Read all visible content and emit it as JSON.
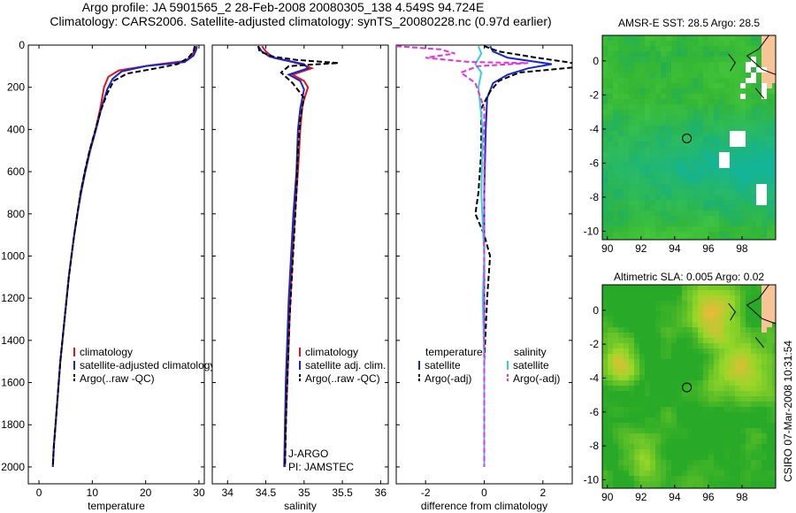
{
  "header": {
    "line1": "Argo profile: JA 5901565_2 28-Feb-2008 20080305_138 4.549S 94.724E",
    "line2": "Climatology: CARS2006. Satellite-adjusted climatology: synTS_20080228.nc (0.97d earlier)"
  },
  "footer": {
    "credit": "CSIRO 07-Mar-2008 10:31:54"
  },
  "colors": {
    "climatology": "#e0141e",
    "satellite": "#1428d2",
    "argo": "#000000",
    "sal_sat": "#32d2dc",
    "sal_argo": "#e632dc"
  },
  "chart_data": [
    {
      "type": "line",
      "name": "temperature-profile",
      "xlabel": "temperature",
      "ylabel": "",
      "xlim": [
        -2,
        31
      ],
      "ylim": [
        2080,
        0
      ],
      "xticks": [
        "0",
        "10",
        "20",
        "30"
      ],
      "xtick_values": [
        0,
        10,
        20,
        30
      ],
      "yticks": [
        "0",
        "200",
        "400",
        "600",
        "800",
        "1000",
        "1200",
        "1400",
        "1600",
        "1800",
        "2000"
      ],
      "ytick_values": [
        0,
        200,
        400,
        600,
        800,
        1000,
        1200,
        1400,
        1600,
        1800,
        2000
      ],
      "legend": [
        "climatology",
        "satellite-adjusted climatology",
        "Argo(..raw -QC)"
      ],
      "series": [
        {
          "name": "climatology",
          "style": "solid",
          "color": "#e0141e",
          "points": [
            [
              29.3,
              5
            ],
            [
              29.2,
              20
            ],
            [
              28.7,
              50
            ],
            [
              27.5,
              75
            ],
            [
              21,
              95
            ],
            [
              15,
              120
            ],
            [
              13,
              150
            ],
            [
              12.2,
              200
            ],
            [
              11.5,
              300
            ],
            [
              10.6,
              400
            ],
            [
              9.5,
              500
            ],
            [
              8.6,
              600
            ],
            [
              7.8,
              700
            ],
            [
              7.2,
              800
            ],
            [
              6.6,
              900
            ],
            [
              6.1,
              1000
            ],
            [
              5.6,
              1100
            ],
            [
              5.2,
              1200
            ],
            [
              4.8,
              1300
            ],
            [
              4.4,
              1400
            ],
            [
              4.0,
              1500
            ],
            [
              3.7,
              1600
            ],
            [
              3.4,
              1700
            ],
            [
              3.1,
              1800
            ],
            [
              2.8,
              1900
            ],
            [
              2.6,
              2000
            ]
          ]
        },
        {
          "name": "satellite-adjusted",
          "style": "solid",
          "color": "#1428d2",
          "points": [
            [
              29.6,
              5
            ],
            [
              29.5,
              20
            ],
            [
              29,
              50
            ],
            [
              27.3,
              80
            ],
            [
              20,
              100
            ],
            [
              15.5,
              125
            ],
            [
              13.8,
              160
            ],
            [
              12.8,
              210
            ],
            [
              11.7,
              300
            ],
            [
              10.7,
              400
            ],
            [
              9.6,
              500
            ],
            [
              8.7,
              600
            ],
            [
              7.9,
              700
            ],
            [
              7.2,
              800
            ],
            [
              6.6,
              900
            ],
            [
              6.1,
              1000
            ],
            [
              5.6,
              1100
            ],
            [
              5.2,
              1200
            ],
            [
              4.8,
              1300
            ],
            [
              4.4,
              1400
            ],
            [
              4.0,
              1500
            ],
            [
              3.7,
              1600
            ],
            [
              3.4,
              1700
            ],
            [
              3.1,
              1800
            ],
            [
              2.8,
              1900
            ],
            [
              2.6,
              2000
            ]
          ]
        },
        {
          "name": "Argo",
          "style": "dashed",
          "color": "#000000",
          "points": [
            [
              29.2,
              5
            ],
            [
              29,
              30
            ],
            [
              28,
              60
            ],
            [
              26,
              90
            ],
            [
              22,
              110
            ],
            [
              16.5,
              135
            ],
            [
              14,
              170
            ],
            [
              12.8,
              230
            ],
            [
              11.6,
              310
            ],
            [
              10.6,
              400
            ],
            [
              9.5,
              500
            ],
            [
              8.6,
              600
            ],
            [
              7.8,
              700
            ],
            [
              7.2,
              800
            ],
            [
              6.6,
              900
            ],
            [
              6.1,
              1000
            ],
            [
              5.6,
              1100
            ],
            [
              5.2,
              1200
            ],
            [
              4.8,
              1300
            ],
            [
              4.4,
              1400
            ],
            [
              4.0,
              1500
            ],
            [
              3.7,
              1600
            ],
            [
              3.4,
              1700
            ],
            [
              3.1,
              1800
            ],
            [
              2.8,
              1900
            ],
            [
              2.6,
              2000
            ]
          ]
        }
      ]
    },
    {
      "type": "line",
      "name": "salinity-profile",
      "xlabel": "salinity",
      "xlim": [
        33.8,
        36.1
      ],
      "ylim": [
        2080,
        0
      ],
      "xticks": [
        "34",
        "34.5",
        "35",
        "35.5",
        "36"
      ],
      "xtick_values": [
        34,
        34.5,
        35,
        35.5,
        36
      ],
      "legend": [
        "climatology",
        "satellite adj. clim.",
        "Argo(..raw -QC)"
      ],
      "annotation": [
        "J-ARGO",
        "PI: JAMSTEC"
      ],
      "series": [
        {
          "name": "climatology",
          "style": "solid",
          "color": "#e0141e",
          "points": [
            [
              34.45,
              5
            ],
            [
              34.5,
              30
            ],
            [
              34.6,
              60
            ],
            [
              34.85,
              80
            ],
            [
              35.0,
              95
            ],
            [
              35.1,
              110
            ],
            [
              34.85,
              140
            ],
            [
              35.0,
              170
            ],
            [
              35.05,
              200
            ],
            [
              34.98,
              280
            ],
            [
              34.95,
              400
            ],
            [
              34.92,
              600
            ],
            [
              34.88,
              800
            ],
            [
              34.85,
              1000
            ],
            [
              34.82,
              1200
            ],
            [
              34.8,
              1400
            ],
            [
              34.78,
              1600
            ],
            [
              34.76,
              1800
            ],
            [
              34.75,
              2000
            ]
          ]
        },
        {
          "name": "satellite",
          "style": "solid",
          "color": "#1428d2",
          "points": [
            [
              34.4,
              5
            ],
            [
              34.45,
              30
            ],
            [
              34.55,
              55
            ],
            [
              34.8,
              75
            ],
            [
              35.0,
              90
            ],
            [
              35.05,
              110
            ],
            [
              34.8,
              140
            ],
            [
              34.95,
              170
            ],
            [
              35.0,
              210
            ],
            [
              34.95,
              300
            ],
            [
              34.92,
              400
            ],
            [
              34.9,
              600
            ],
            [
              34.86,
              800
            ],
            [
              34.83,
              1000
            ],
            [
              34.8,
              1200
            ],
            [
              34.78,
              1400
            ],
            [
              34.76,
              1600
            ],
            [
              34.75,
              1800
            ],
            [
              34.74,
              2000
            ]
          ]
        },
        {
          "name": "Argo",
          "style": "dashed",
          "color": "#000000",
          "points": [
            [
              34.4,
              5
            ],
            [
              34.42,
              30
            ],
            [
              34.6,
              55
            ],
            [
              34.9,
              70
            ],
            [
              35.45,
              85
            ],
            [
              35.2,
              90
            ],
            [
              34.8,
              100
            ],
            [
              34.7,
              130
            ],
            [
              34.85,
              180
            ],
            [
              35.0,
              250
            ],
            [
              34.95,
              350
            ],
            [
              34.92,
              500
            ],
            [
              34.9,
              700
            ],
            [
              34.87,
              900
            ],
            [
              34.84,
              1100
            ],
            [
              34.81,
              1300
            ],
            [
              34.79,
              1500
            ],
            [
              34.77,
              1700
            ],
            [
              34.75,
              2000
            ]
          ]
        }
      ]
    },
    {
      "type": "line",
      "name": "difference-from-climatology",
      "xlabel": "difference from climatology",
      "xlim": [
        -3,
        3
      ],
      "ylim": [
        2080,
        0
      ],
      "xticks": [
        "-2",
        "0",
        "2"
      ],
      "xtick_values": [
        -2,
        0,
        2
      ],
      "legend_left_title": "temperature",
      "legend_right_title": "salinity",
      "legend": [
        "satellite",
        "Argo(-adj)",
        "satellite",
        "Argo(-adj)"
      ],
      "series": [
        {
          "name": "temperature satellite",
          "style": "solid",
          "color": "#1428d2",
          "points": [
            [
              0.2,
              5
            ],
            [
              0.3,
              30
            ],
            [
              0.8,
              60
            ],
            [
              2.3,
              90
            ],
            [
              1.5,
              110
            ],
            [
              0.8,
              140
            ],
            [
              0.3,
              180
            ],
            [
              0.1,
              250
            ],
            [
              0.05,
              400
            ],
            [
              0,
              700
            ],
            [
              0,
              1000
            ],
            [
              0,
              1500
            ],
            [
              0,
              2000
            ]
          ]
        },
        {
          "name": "temperature Argo",
          "style": "dashed",
          "color": "#000000",
          "points": [
            [
              0,
              5
            ],
            [
              0.5,
              30
            ],
            [
              1.8,
              60
            ],
            [
              2.8,
              80
            ],
            [
              3.5,
              100
            ],
            [
              1.2,
              130
            ],
            [
              0.5,
              170
            ],
            [
              0.2,
              220
            ],
            [
              -0.1,
              300
            ],
            [
              -0.1,
              500
            ],
            [
              -0.2,
              700
            ],
            [
              -0.3,
              800
            ],
            [
              0,
              900
            ],
            [
              0.2,
              1000
            ],
            [
              0.1,
              1200
            ],
            [
              0,
              1500
            ],
            [
              0,
              2000
            ]
          ]
        },
        {
          "name": "salinity satellite",
          "style": "solid",
          "color": "#32d2dc",
          "points": [
            [
              -0.2,
              5
            ],
            [
              -0.1,
              40
            ],
            [
              -0.3,
              90
            ],
            [
              -0.1,
              130
            ],
            [
              -0.2,
              200
            ],
            [
              -0.05,
              400
            ],
            [
              -0.1,
              700
            ],
            [
              0,
              1000
            ],
            [
              -0.05,
              1200
            ],
            [
              0,
              1500
            ],
            [
              0,
              2000
            ]
          ]
        },
        {
          "name": "salinity Argo",
          "style": "dashed",
          "color": "#e632dc",
          "points": [
            [
              -3,
              5
            ],
            [
              -1.5,
              20
            ],
            [
              -1,
              40
            ],
            [
              -2,
              60
            ],
            [
              -0.5,
              80
            ],
            [
              1.5,
              85
            ],
            [
              -0.2,
              100
            ],
            [
              -0.8,
              130
            ],
            [
              -0.3,
              180
            ],
            [
              0,
              300
            ],
            [
              0,
              600
            ],
            [
              0,
              1000
            ],
            [
              0,
              1500
            ],
            [
              0,
              2000
            ]
          ]
        }
      ]
    },
    {
      "type": "heatmap",
      "name": "amsr-e-sst-map",
      "title": "AMSR-E SST: 28.5  Argo: 28.5",
      "xlim": [
        89.7,
        100
      ],
      "ylim": [
        -10.5,
        1.5
      ],
      "xticks": [
        "90",
        "92",
        "94",
        "96",
        "98"
      ],
      "xtick_values": [
        90,
        92,
        94,
        96,
        98
      ],
      "yticks": [
        "0",
        "-2",
        "-4",
        "-6",
        "-8",
        "-10"
      ],
      "ytick_values": [
        0,
        -2,
        -4,
        -6,
        -8,
        -10
      ],
      "marker": [
        94.724,
        -4.549
      ]
    },
    {
      "type": "heatmap",
      "name": "altimetric-sla-map",
      "title": "Altimetric SLA: 0.005  Argo: 0.02",
      "xlim": [
        89.7,
        100
      ],
      "ylim": [
        -10.5,
        1.5
      ],
      "xticks": [
        "90",
        "92",
        "94",
        "96",
        "98"
      ],
      "xtick_values": [
        90,
        92,
        94,
        96,
        98
      ],
      "yticks": [
        "0",
        "-2",
        "-4",
        "-6",
        "-8",
        "-10"
      ],
      "ytick_values": [
        0,
        -2,
        -4,
        -6,
        -8,
        -10
      ],
      "marker": [
        94.724,
        -4.549
      ]
    }
  ]
}
